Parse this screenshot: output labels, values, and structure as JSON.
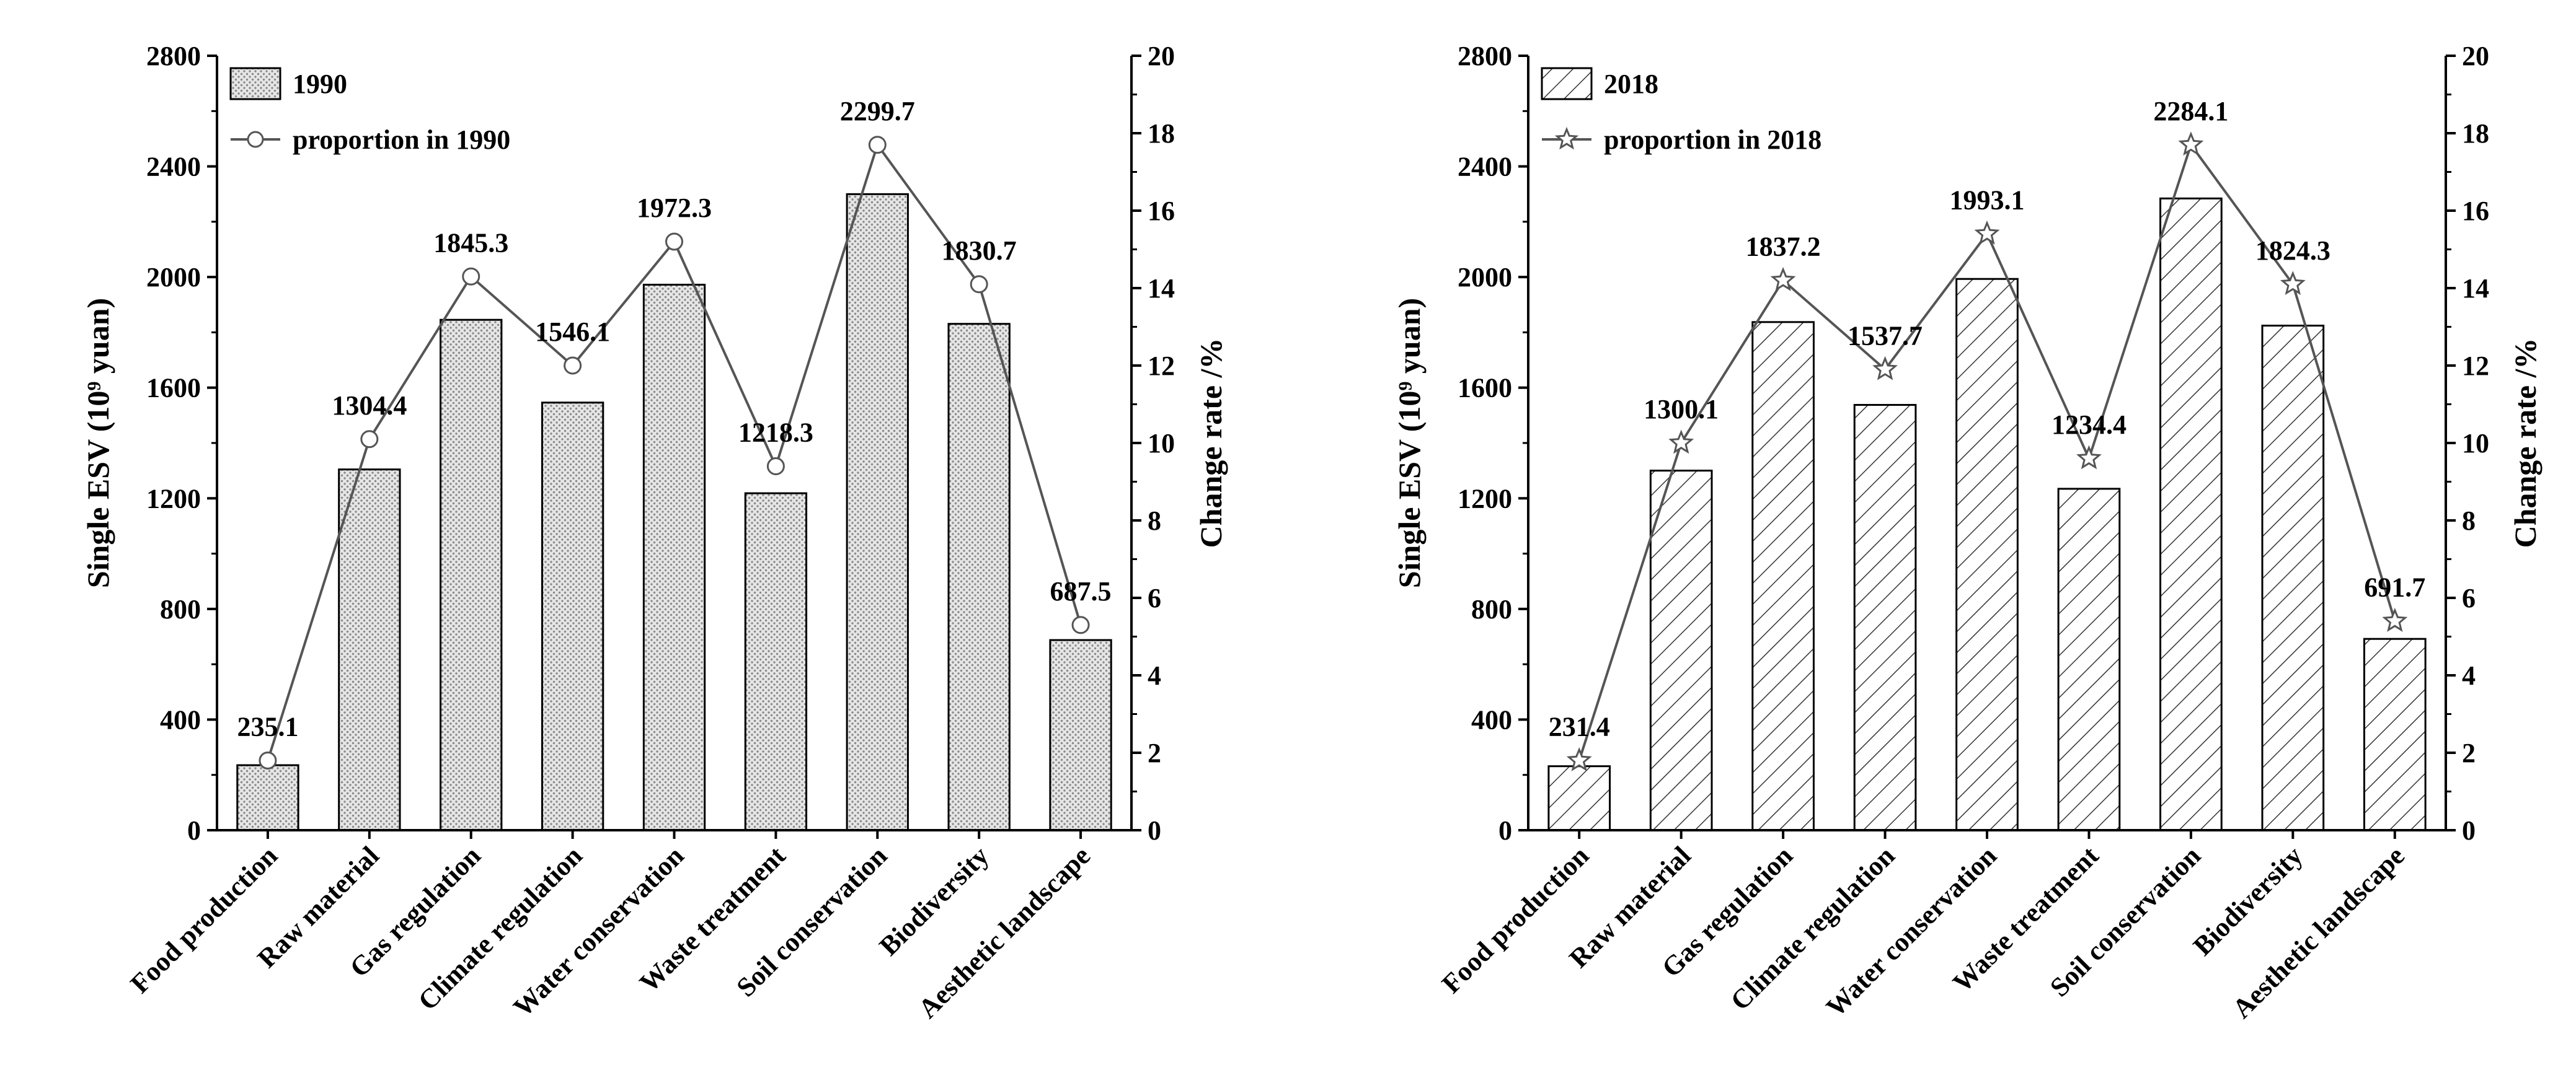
{
  "chart_data": [
    {
      "type": "bar",
      "title": "",
      "categories": [
        "Food production",
        "Raw material",
        "Gas regulation",
        "Climate regulation",
        "Water conservation",
        "Waste treatment",
        "Soil conservation",
        "Biodiversity",
        "Aesthetic landscape"
      ],
      "series": [
        {
          "name": "1990",
          "type": "bar",
          "pattern": "dots",
          "values": [
            235.1,
            1304.4,
            1845.3,
            1546.1,
            1972.3,
            1218.3,
            2299.7,
            1830.7,
            687.5
          ],
          "labels": [
            "235.1",
            "1304.4",
            "1845.3",
            "1546.1",
            "1972.3",
            "1218.3",
            "2299.7",
            "1830.7",
            "687.5"
          ]
        },
        {
          "name": "proportion in 1990",
          "type": "line",
          "marker": "circle",
          "axis": "right",
          "values": [
            1.8,
            10.1,
            14.3,
            12.0,
            15.2,
            9.4,
            17.7,
            14.1,
            5.3
          ]
        }
      ],
      "ylabel_left": "Single ESV (10⁹ yuan)",
      "ylabel_right": "Change rate /%",
      "ylim_left": [
        0,
        2800
      ],
      "ylim_right": [
        0,
        20
      ],
      "yticks_left": [
        "0",
        "400",
        "800",
        "1200",
        "1600",
        "2000",
        "2400",
        "2800"
      ],
      "yticks_right": [
        "0",
        "2",
        "4",
        "6",
        "8",
        "10",
        "12",
        "14",
        "16",
        "18",
        "20"
      ],
      "legend": [
        "1990",
        "proportion in 1990"
      ],
      "legend_position": "top-left",
      "colors": {
        "bar_fill": "#e4e4e4",
        "bar_pattern": "#8a8a8a",
        "line": "#555555",
        "marker_fill": "#ffffff"
      }
    },
    {
      "type": "bar",
      "title": "",
      "categories": [
        "Food production",
        "Raw material",
        "Gas regulation",
        "Climate regulation",
        "Water conservation",
        "Waste treatment",
        "Soil conservation",
        "Biodiversity",
        "Aesthetic landscape"
      ],
      "series": [
        {
          "name": "2018",
          "type": "bar",
          "pattern": "hatch",
          "values": [
            231.4,
            1300.1,
            1837.2,
            1537.7,
            1993.1,
            1234.4,
            2284.1,
            1824.3,
            691.7
          ],
          "labels": [
            "231.4",
            "1300.1",
            "1837.2",
            "1537.7",
            "1993.1",
            "1234.4",
            "2284.1",
            "1824.3",
            "691.7"
          ]
        },
        {
          "name": "proportion in 2018",
          "type": "line",
          "marker": "star",
          "axis": "right",
          "values": [
            1.8,
            10.0,
            14.2,
            11.9,
            15.4,
            9.6,
            17.7,
            14.1,
            5.4
          ]
        }
      ],
      "ylabel_left": "Single ESV (10⁹ yuan)",
      "ylabel_right": "Change rate /%",
      "ylim_left": [
        0,
        2800
      ],
      "ylim_right": [
        0,
        20
      ],
      "yticks_left": [
        "0",
        "400",
        "800",
        "1200",
        "1600",
        "2000",
        "2400",
        "2800"
      ],
      "yticks_right": [
        "0",
        "2",
        "4",
        "6",
        "8",
        "10",
        "12",
        "14",
        "16",
        "18",
        "20"
      ],
      "legend": [
        "2018",
        "proportion in 2018"
      ],
      "legend_position": "top-left",
      "colors": {
        "bar_fill": "#ffffff",
        "bar_pattern": "#333333",
        "line": "#555555",
        "marker_fill": "#ffffff"
      }
    }
  ]
}
